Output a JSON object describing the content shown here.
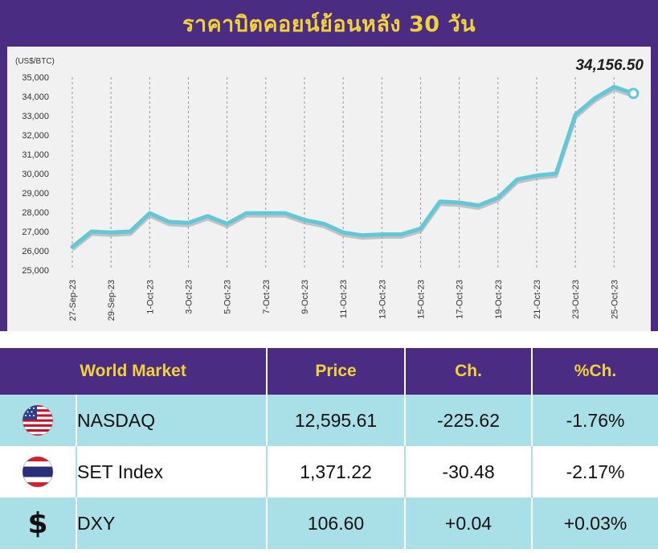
{
  "colors": {
    "frame": "#4a2d82",
    "title": "#f2d23a",
    "line": "#62c8d8",
    "row_alt": "#a9dfe6"
  },
  "chart_data": {
    "type": "line",
    "title": "ราคาบิตคอยน์ย้อนหลัง 30 วัน",
    "ylabel": "(US$/BTC)",
    "ylim": [
      25000,
      35000
    ],
    "yticks": [
      "35,000",
      "34,000",
      "33,000",
      "32,000",
      "31,000",
      "30,000",
      "29,000",
      "28,000",
      "27,000",
      "26,000",
      "25,000"
    ],
    "xticks": [
      "27-Sep-23",
      "29-Sep-23",
      "1-Oct-23",
      "3-Oct-23",
      "5-Oct-23",
      "7-Oct-23",
      "9-Oct-23",
      "11-Oct-23",
      "13-Oct-23",
      "15-Oct-23",
      "17-Oct-23",
      "19-Oct-23",
      "21-Oct-23",
      "23-Oct-23",
      "25-Oct-23"
    ],
    "grid": "vertical",
    "last_value_label": "34,156.50",
    "series": [
      {
        "x": [
          "27-Sep-23",
          "28-Sep-23",
          "29-Sep-23",
          "30-Sep-23",
          "1-Oct-23",
          "2-Oct-23",
          "3-Oct-23",
          "4-Oct-23",
          "5-Oct-23",
          "6-Oct-23",
          "7-Oct-23",
          "8-Oct-23",
          "9-Oct-23",
          "10-Oct-23",
          "11-Oct-23",
          "12-Oct-23",
          "13-Oct-23",
          "14-Oct-23",
          "15-Oct-23",
          "16-Oct-23",
          "17-Oct-23",
          "18-Oct-23",
          "19-Oct-23",
          "20-Oct-23",
          "21-Oct-23",
          "22-Oct-23",
          "23-Oct-23",
          "24-Oct-23",
          "25-Oct-23",
          "26-Oct-23"
        ],
        "values": [
          26200,
          27000,
          26950,
          27000,
          27950,
          27500,
          27450,
          27800,
          27400,
          27950,
          27950,
          27950,
          27600,
          27400,
          26950,
          26800,
          26850,
          26850,
          27150,
          28550,
          28500,
          28350,
          28750,
          29700,
          29900,
          30000,
          33050,
          33900,
          34500,
          34156.5
        ]
      }
    ]
  },
  "table": {
    "headers": [
      "World Market",
      "Price",
      "Ch.",
      "%Ch."
    ],
    "rows": [
      {
        "icon": "us-flag-icon",
        "name": "NASDAQ",
        "price": "12,595.61",
        "change": "-225.62",
        "pct": "-1.76%"
      },
      {
        "icon": "thai-flag-icon",
        "name": "SET Index",
        "price": "1,371.22",
        "change": "-30.48",
        "pct": "-2.17%"
      },
      {
        "icon": "dollar-icon",
        "name": "DXY",
        "price": "106.60",
        "change": "+0.04",
        "pct": "+0.03%"
      }
    ]
  },
  "dollar_glyph": "$"
}
